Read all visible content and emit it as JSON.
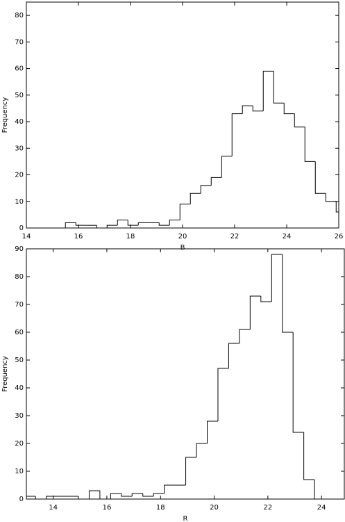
{
  "chart_data": [
    {
      "type": "histogram",
      "xlabel": "B",
      "ylabel": "Frequency",
      "color": "#000000",
      "bins": [
        14.3,
        14.7,
        15.1,
        15.5,
        15.9,
        16.3,
        16.7,
        17.1,
        17.5,
        17.9,
        18.3,
        18.7,
        19.1,
        19.5,
        19.9,
        20.3,
        20.7,
        21.1,
        21.5,
        21.9,
        22.3,
        22.7,
        23.1,
        23.5,
        23.9,
        24.3,
        24.7,
        25.1,
        25.5,
        25.9,
        26.3
      ],
      "values": [
        0,
        0,
        0,
        2,
        1,
        1,
        0,
        1,
        3,
        1,
        2,
        2,
        1,
        3,
        9,
        13,
        16,
        19,
        27,
        43,
        46,
        44,
        59,
        47,
        43,
        38,
        25,
        13,
        10,
        6
      ],
      "xlim": [
        14,
        26
      ],
      "xticks": [
        14,
        16,
        18,
        20,
        22,
        24,
        26
      ],
      "ylim": [
        0,
        85
      ],
      "yticks": [
        0,
        10,
        20,
        30,
        40,
        50,
        60,
        70,
        80
      ]
    },
    {
      "type": "histogram",
      "xlabel": "R",
      "ylabel": "Frequency",
      "color": "#000000",
      "bins": [
        12.94,
        13.34,
        13.74,
        14.14,
        14.54,
        14.94,
        15.34,
        15.74,
        16.14,
        16.54,
        16.94,
        17.34,
        17.74,
        18.14,
        18.54,
        18.94,
        19.34,
        19.74,
        20.14,
        20.54,
        20.94,
        21.34,
        21.74,
        22.14,
        22.54,
        22.94,
        23.34,
        23.74,
        24.14,
        24.54,
        24.94
      ],
      "values": [
        1,
        0,
        1,
        1,
        1,
        0,
        3,
        0,
        2,
        1,
        2,
        1,
        2,
        5,
        5,
        15,
        20,
        28,
        47,
        56,
        61,
        73,
        71,
        88,
        60,
        24,
        7,
        0,
        0,
        0
      ],
      "xlim": [
        13,
        24.85
      ],
      "xticks": [
        14,
        16,
        18,
        20,
        22,
        24
      ],
      "ylim": [
        0,
        90
      ],
      "yticks": [
        0,
        10,
        20,
        30,
        40,
        50,
        60,
        70,
        80,
        90
      ]
    }
  ]
}
